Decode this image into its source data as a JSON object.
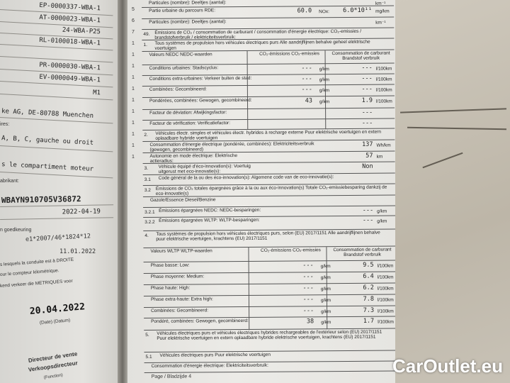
{
  "left_page": {
    "codes": [
      "EP-0000337-WBA-1",
      "AT-0000023-WBA-1",
      "24-WBA-P25",
      "RL-0100018-WBA-1",
      "",
      "PR-0000030-WBA-1",
      "EV-0000049-WBA-1",
      "M1"
    ],
    "manufacturer": "ke AG, DE-80788 Muenchen",
    "small1": "ires:",
    "positions": "A, B, C, gauche ou droit",
    "location": "s le compartiment moteur",
    "small2": "abrikant:",
    "vin": "WBAYN910705V36872",
    "vin_date": "2022-04-19",
    "approval_label": "n goedkeuring",
    "approval": "e1*2007/46*1824*12",
    "approval_date": "11.01.2022",
    "note1": "s lesquels la conduite est à DROITE",
    "note2": "our le compteur kilométrique.",
    "note3": "kend verkeer die METRIQUES voor",
    "date": "20.04.2022",
    "date_label": "(Date) (Datum)",
    "function1": "Directeur de vente",
    "function2": "Verkoopsdirecteur",
    "function_label": "(Fonction)"
  },
  "margin_numbers": [
    "5",
    "6",
    "7",
    "1",
    "1",
    "1",
    "1",
    "1",
    "1",
    "1",
    "1",
    "1",
    "1",
    "1"
  ],
  "rows": [
    {
      "lbl": "Particules (nombre): Deeltjes (aantal):",
      "u2": "km⁻¹"
    },
    {
      "lbl": "Partie urbaine du parcours RDE:",
      "v1": "60.0",
      "u1": "NOx:",
      "v2": "6.0*10¹¹",
      "u2": "mg/km"
    },
    {
      "lbl": "Particules (nombre): Deeltjes (aantal):",
      "u2": "km⁻¹"
    },
    {
      "sec": "49.",
      "lbl": "Émissions de CO₂ / consommation de carburant / consommation d'énergie électrique: CO₂-emissies / brandstofverbruik / elektriciteitsverbruik:",
      "wide": true
    },
    {
      "sec": "1.",
      "lbl": "Tous systèmes de propulsion hors véhicules électriques purs Alle aandrijflijnen behalve geheel elektrische voertuigen",
      "wide": true
    },
    {
      "lbl": "Valeurs NEDC NEDC-waarden",
      "v1t": "CO₂-émissions CO₂-emissies",
      "v2t": "Consommation de carburant Brandstof verbruik"
    },
    {
      "lbl": "Conditions urbaines: Stadscyclus:",
      "v1": "---",
      "u1": "g/km",
      "v2": "---",
      "u2": "l/100km"
    },
    {
      "lbl": "Conditions extra-urbaines: Verkeer buiten de stad:",
      "v1": "---",
      "u1": "g/km",
      "v2": "---",
      "u2": "l/100km"
    },
    {
      "lbl": "Combinées: Gecombineerd:",
      "v1": "---",
      "u1": "g/km",
      "v2": "---",
      "u2": "l/100km"
    },
    {
      "lbl": "Pondérées, combinées: Gewogen, gecombineerd:",
      "v1": "43",
      "u1": "g/km",
      "v2": "1.9",
      "u2": "l/100km"
    },
    {
      "lbl": "Facteur de déviation: Afwijkingsfactor:",
      "v2": "---"
    },
    {
      "lbl": "Facteur de vérification: Verificatiefactor:",
      "v2": "---"
    },
    {
      "sec": "2.",
      "lbl": "Véhicules électr. simples et véhicules électr. hybrides à recharge externe Puur elektrische voertuigen en extern oplaadbare hybride voertuigen",
      "wide": true
    },
    {
      "lbl": "Consommation d'énergie électrique (pondérée, combinées): Elektriciteitsverbruik (gewogen, gecombineerd)",
      "v2": "137",
      "u2": "Wh/km"
    },
    {
      "lbl": "Autonomie en mode électrique: Elektrische actieradius:",
      "v2": "57",
      "u2": "km"
    },
    {
      "sec": "3.",
      "lbl": "Véhicule équipé d'éco-innovation(s): Voertuig uitgerust met eco-innovatie(s):",
      "v2": "Non"
    },
    {
      "sec": "3.1",
      "lbl": "Code général de la ou des éco-innovation(s): Algemene code van de eco-innovatie(s):"
    },
    {
      "sec": "3.2",
      "lbl": "Émissions de CO₂ totales épargnées grâce à la ou aux éco-innovation(s) Totale CO₂-emissiebesparing dankzij de eco-innovatie(s)",
      "wide": true
    },
    {
      "lbl": "Gazole/Essence Diesel/Benzine"
    },
    {
      "sec": "3.2.1",
      "lbl": "Émissions épargnées NEDC: NEDC-besparingen:",
      "v2": "---",
      "u2": "g/km"
    },
    {
      "sec": "3.2.2",
      "lbl": "Émissions épargnées WLTP: WLTP-besparingen:",
      "v2": "---",
      "u2": "g/km"
    },
    {
      "sec": "4.",
      "lbl": "Tous systèmes de propulsion hors véhicules électriques purs, selon (EU) 2017/1151 Alle aandrijflijnen behalve puur elektrische voertuigen, krachtens (EU) 2017/1151",
      "wide": true
    },
    {
      "lbl": "Valeurs WLTP WLTP-waarden",
      "v1t": "CO₂-émissions CO₂-emissies",
      "v2t": "Consommation de carburant Brandstof verbruik"
    },
    {
      "lbl": "Phase basse: Low:",
      "v1": "---",
      "u1": "g/km",
      "v2": "9.5",
      "u2": "l/100km"
    },
    {
      "lbl": "Phase moyenne: Medium:",
      "v1": "---",
      "u1": "g/km",
      "v2": "6.4",
      "u2": "l/100km"
    },
    {
      "lbl": "Phase haute: High:",
      "v1": "---",
      "u1": "g/km",
      "v2": "6.2",
      "u2": "l/100km"
    },
    {
      "lbl": "Phase extra-haute: Extra high:",
      "v1": "---",
      "u1": "g/km",
      "v2": "7.8",
      "u2": "l/100km"
    },
    {
      "lbl": "Combinées: Gecombineerd:",
      "v1": "---",
      "u1": "g/km",
      "v2": "7.3",
      "u2": "l/100km"
    },
    {
      "lbl": "Pondéré, combinées: Gewogen, gecombineerd:",
      "v1": "38",
      "u1": "g/km",
      "v2": "1.7",
      "u2": "l/100km"
    },
    {
      "sec": "5.",
      "lbl": "Véhicules électriques purs et véhicules électriques hybrides rechargeables de l'extérieur selon (EU) 2017/1151 Puur elektrische voertuigen en extern oplaadbare hybride elektrische voertuigen, krachtens (EU) 2017/1151",
      "wide": true
    },
    {
      "sec": "5.1",
      "lbl": "Véhicules électriques purs Puur elektrische voertuigen"
    },
    {
      "lbl": "Consommation d'énergie électrique: Elektriciteitsverbruik:"
    }
  ],
  "footer": "Page / Bladzijde 4",
  "watermark": "CarOutlet.eu"
}
